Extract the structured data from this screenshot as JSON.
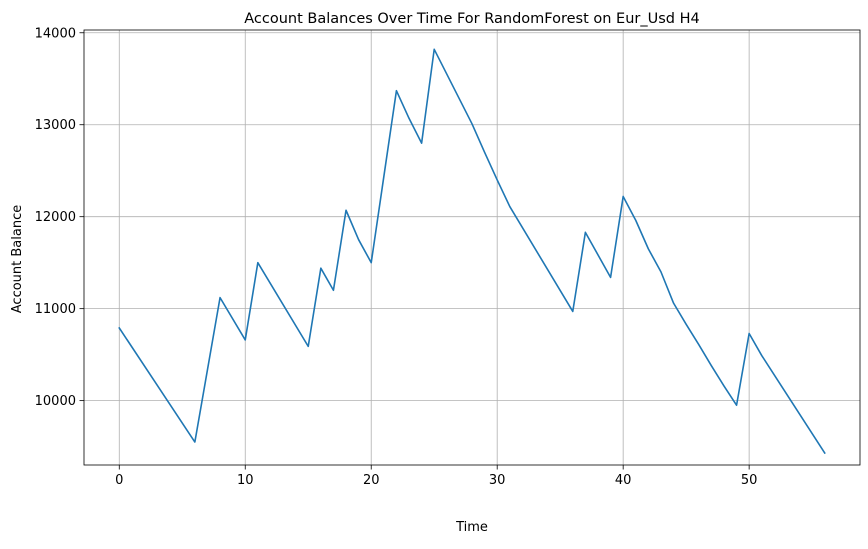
{
  "chart_data": {
    "type": "line",
    "title": "Account Balances Over Time For RandomForest on Eur_Usd H4",
    "xlabel": "Time",
    "ylabel": "Account Balance",
    "xlim": [
      -2.8,
      58.8
    ],
    "ylim": [
      9300,
      14030
    ],
    "xticks": [
      0,
      10,
      20,
      30,
      40,
      50
    ],
    "yticks": [
      10000,
      11000,
      12000,
      13000,
      14000
    ],
    "grid": true,
    "line_color": "#1f77b4",
    "series": [
      {
        "x": [
          0,
          6,
          8,
          10,
          11,
          15,
          16,
          17,
          18,
          19,
          20,
          22,
          23,
          24,
          25,
          28,
          29,
          30,
          31,
          36,
          37,
          39,
          40,
          41,
          42,
          43,
          44,
          45,
          46,
          47,
          48,
          49,
          50,
          51,
          56
        ],
        "values": [
          10790,
          9550,
          11120,
          10660,
          11500,
          10590,
          11440,
          11200,
          12070,
          11750,
          11500,
          13370,
          13070,
          12800,
          13820,
          13010,
          12700,
          12400,
          12110,
          10970,
          11830,
          11340,
          12220,
          11960,
          11650,
          11400,
          11060,
          10830,
          10610,
          10380,
          10160,
          9950,
          10730,
          10490,
          9430
        ]
      }
    ]
  }
}
